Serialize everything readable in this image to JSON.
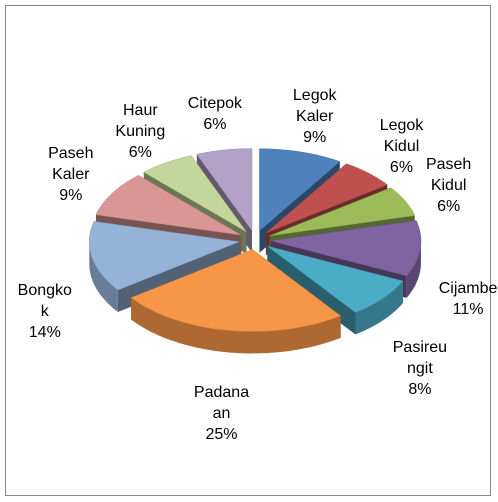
{
  "chart_data": {
    "type": "pie3d",
    "categories": [
      "Legok Kaler",
      "Legok Kidul",
      "Paseh Kidul",
      "Cijambe",
      "Pasireungit",
      "Padanaan",
      "Bongkok",
      "Paseh Kaler",
      "Haur Kuning",
      "Citepok"
    ],
    "values": [
      9,
      6,
      6,
      11,
      8,
      25,
      14,
      9,
      6,
      6
    ],
    "value_labels": [
      "9%",
      "6%",
      "6%",
      "11%",
      "8%",
      "25%",
      "14%",
      "9%",
      "6%",
      "6%"
    ],
    "colors": [
      "#4f81bd",
      "#c0504d",
      "#9bbb59",
      "#8064a2",
      "#4bacc6",
      "#f79646",
      "#95b3d7",
      "#d99694",
      "#c3d69b",
      "#b3a2c7"
    ]
  }
}
